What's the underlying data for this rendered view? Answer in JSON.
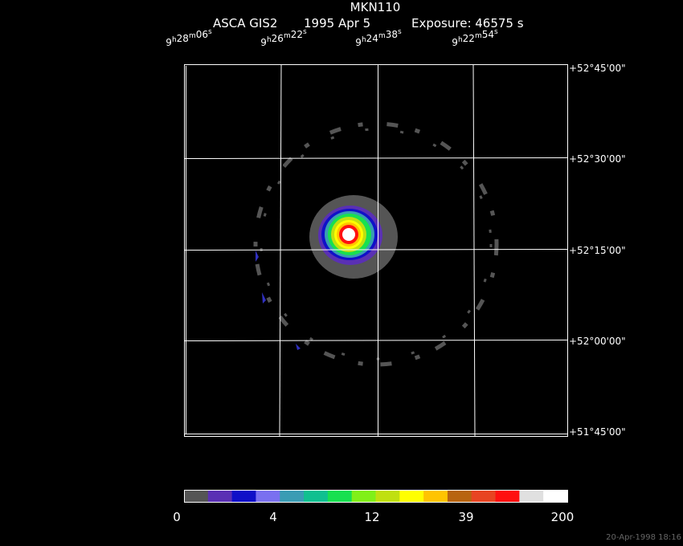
{
  "header": {
    "title": "MKN110",
    "instrument": "ASCA GIS2",
    "date": "1995 Apr  5",
    "exposure": "Exposure: 46575 s"
  },
  "ra_units": [
    "h",
    "m",
    "s"
  ],
  "ra_labels": [
    {
      "h": "9",
      "m": "28",
      "s": "06"
    },
    {
      "h": "9",
      "m": "26",
      "s": "22"
    },
    {
      "h": "9",
      "m": "24",
      "s": "38"
    },
    {
      "h": "9",
      "m": "22",
      "s": "54"
    }
  ],
  "dec_labels": [
    "+52°45'00\"",
    "+52°30'00\"",
    "+52°15'00\"",
    "+52°00'00\"",
    "+51°45'00\""
  ],
  "colorbar": {
    "colors": [
      "#555555",
      "#5a30b4",
      "#1010c8",
      "#7a70f0",
      "#3a9cb4",
      "#10c090",
      "#18e050",
      "#80f018",
      "#c0e010",
      "#ffff00",
      "#ffc400",
      "#b86410",
      "#e84422",
      "#ff1010",
      "#e0e0e0",
      "#ffffff"
    ],
    "labels": [
      "0",
      "4",
      "12",
      "39",
      "200"
    ]
  },
  "timestamp": "20-Apr-1998 18:16"
}
